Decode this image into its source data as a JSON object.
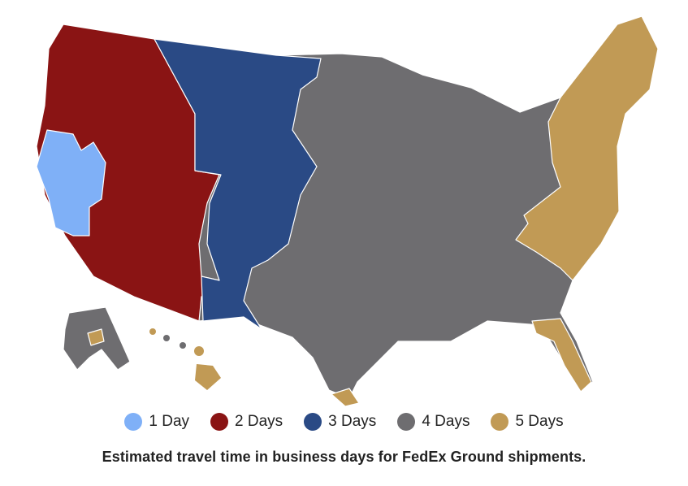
{
  "colors": {
    "day1": "#7fb0f7",
    "day2": "#8a1414",
    "day3": "#2a4a85",
    "day4": "#6e6d70",
    "day5": "#c19a55"
  },
  "legend": [
    {
      "label": "1 Day",
      "color": "#7fb0f7"
    },
    {
      "label": "2 Days",
      "color": "#8a1414"
    },
    {
      "label": "3 Days",
      "color": "#2a4a85"
    },
    {
      "label": "4 Days",
      "color": "#6e6d70"
    },
    {
      "label": "5 Days",
      "color": "#c19a55"
    }
  ],
  "caption": "Estimated travel time in business days for FedEx Ground shipments."
}
